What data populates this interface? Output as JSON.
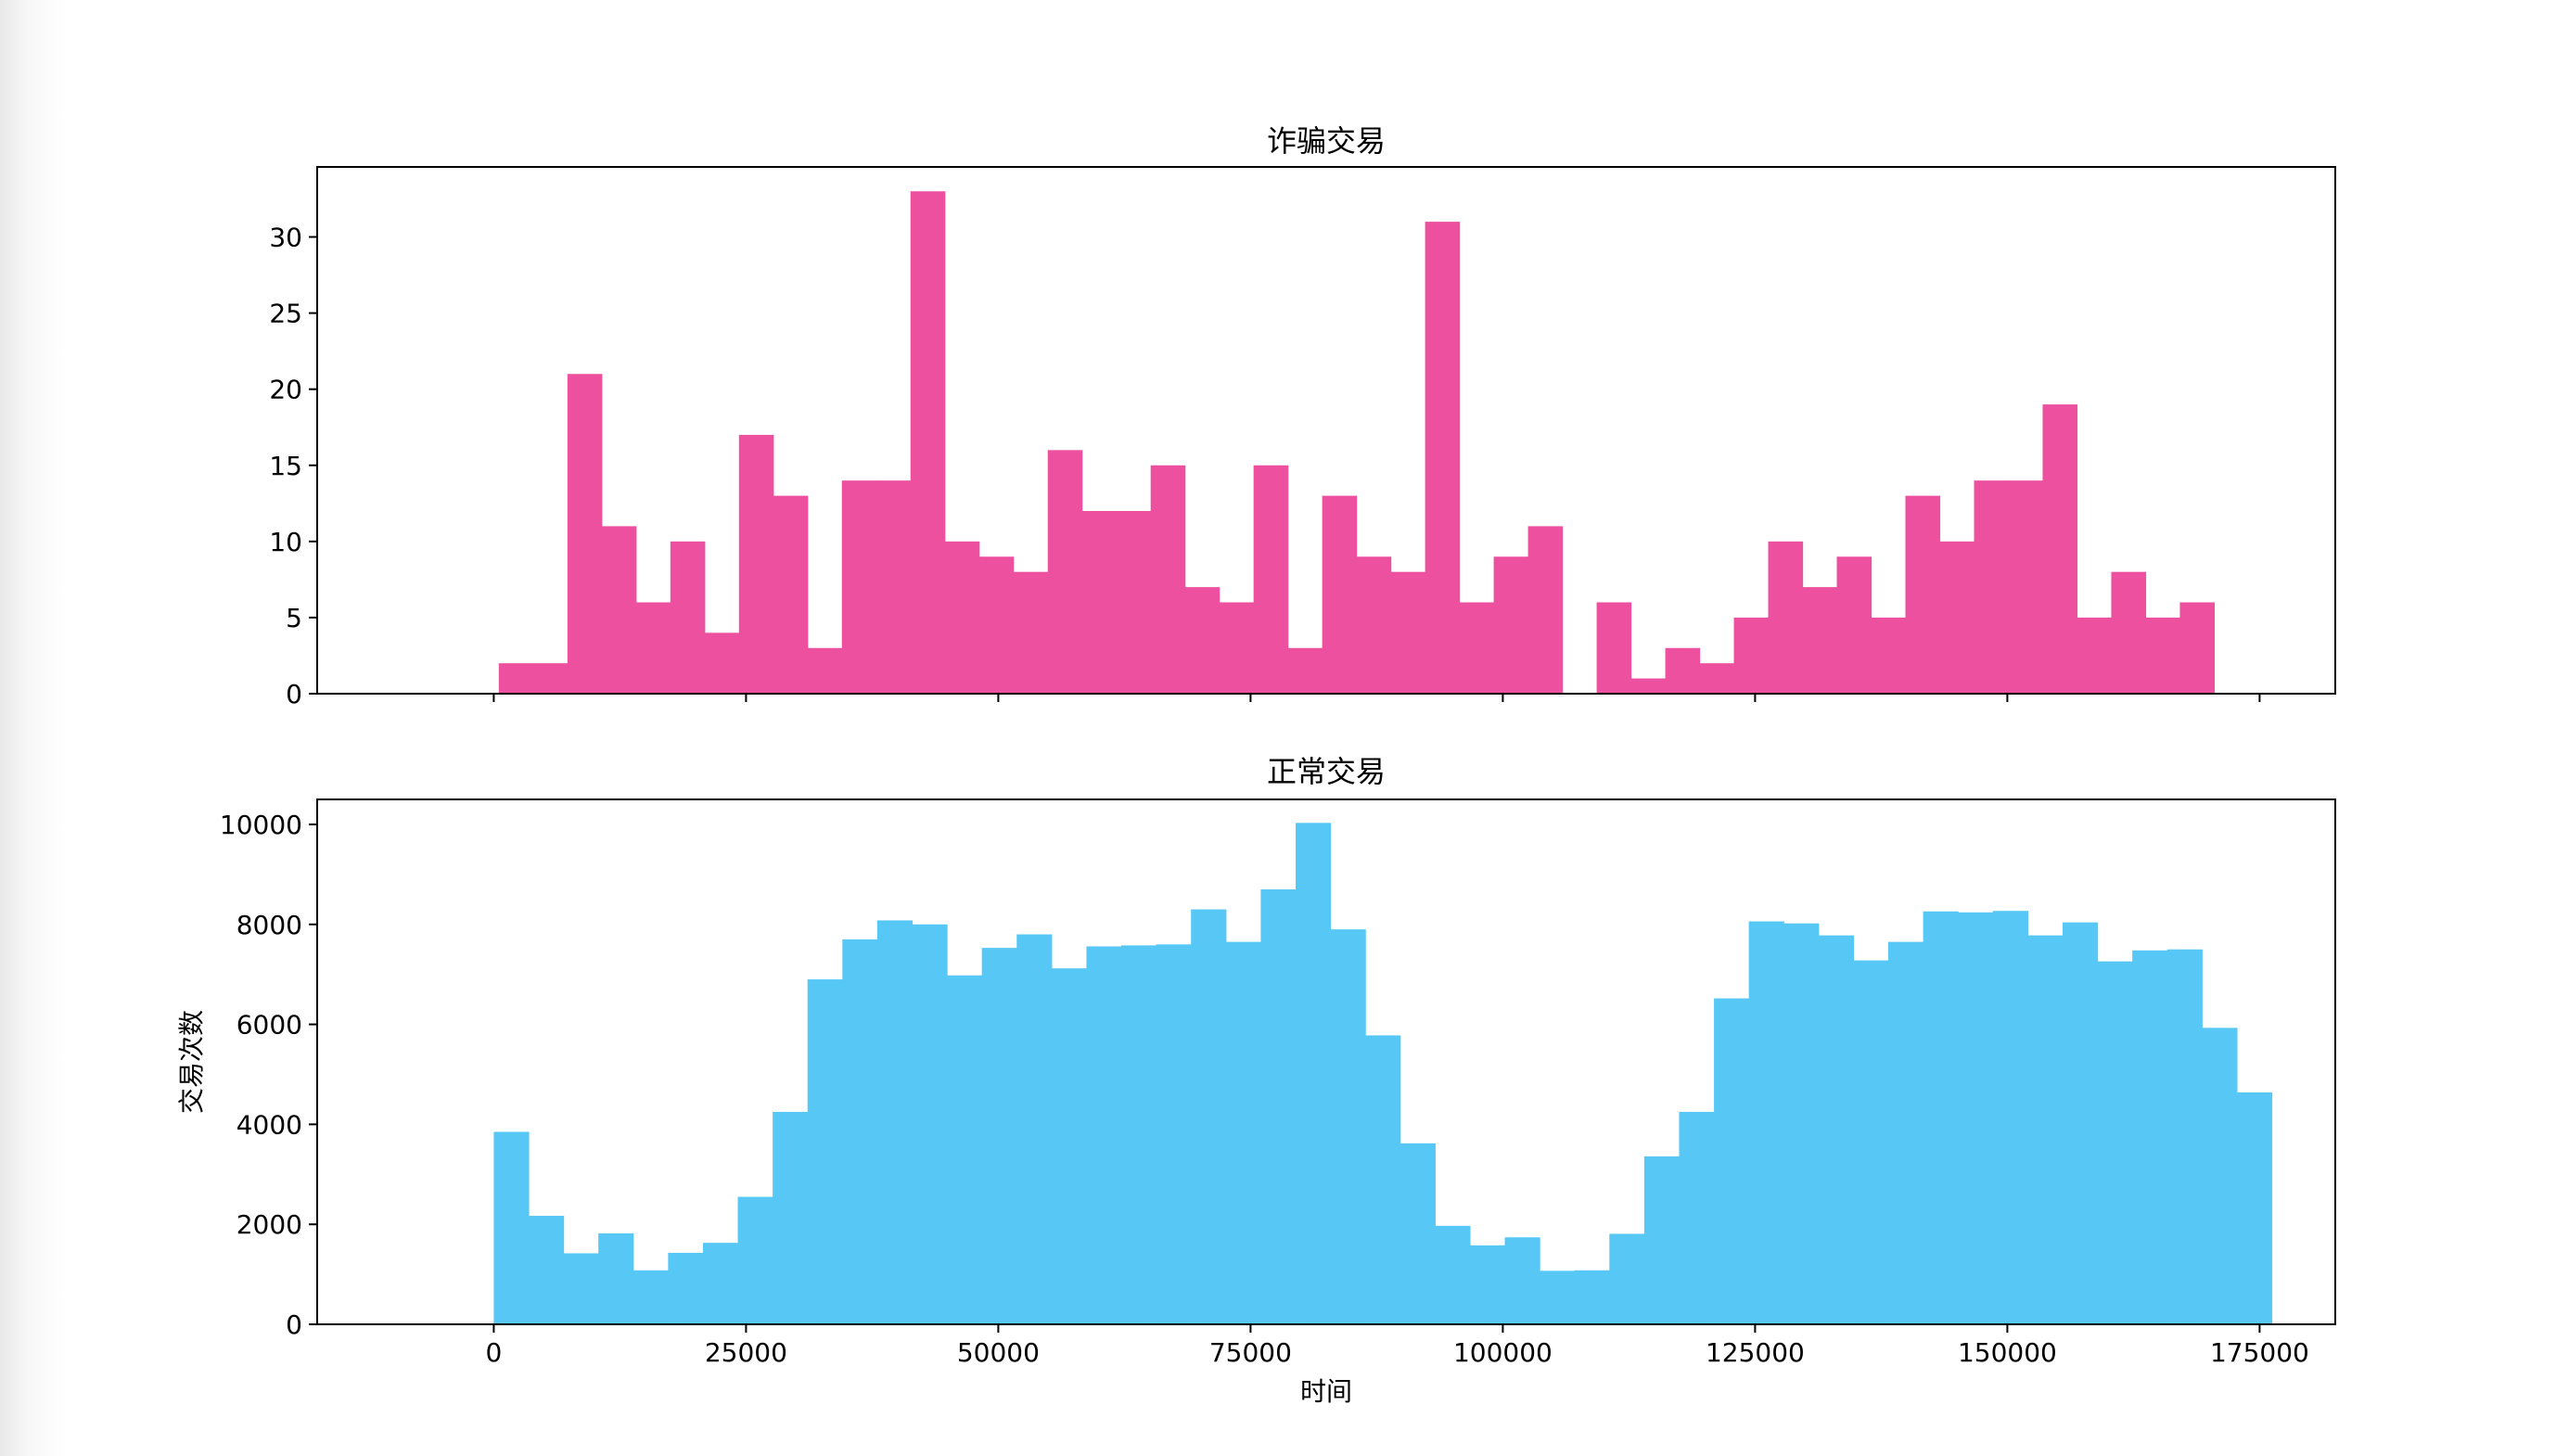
{
  "colors": {
    "fraud": "#EC509F",
    "normal": "#57C8F6",
    "frame": "#000000"
  },
  "chart_data": [
    {
      "type": "bar",
      "title": "诈骗交易",
      "xlabel": "",
      "ylabel": "",
      "bin_width": 3400,
      "x_start": 500,
      "xlim": [
        -17500,
        182500
      ],
      "ylim": [
        0,
        34.6
      ],
      "yticks": [
        "0",
        "5",
        "10",
        "15",
        "20",
        "25",
        "30"
      ],
      "xticks": [
        0,
        25000,
        50000,
        75000,
        100000,
        125000,
        150000,
        175000
      ],
      "xtick_labels_shown": false,
      "values": [
        2,
        2,
        21,
        11,
        6,
        10,
        4,
        17,
        13,
        3,
        14,
        14,
        33,
        10,
        9,
        8,
        16,
        12,
        12,
        15,
        7,
        6,
        15,
        3,
        13,
        9,
        8,
        31,
        6,
        9,
        11,
        0,
        6,
        1,
        3,
        2,
        5,
        10,
        7,
        9,
        5,
        13,
        10,
        14,
        14,
        19,
        5,
        8,
        5,
        6
      ]
    },
    {
      "type": "bar",
      "title": "正常交易",
      "xlabel": "时间",
      "ylabel": "交易次数",
      "bin_width": 3455,
      "x_start": 0,
      "xlim": [
        -17500,
        182500
      ],
      "ylim": [
        0,
        10500
      ],
      "yticks": [
        "0",
        "2000",
        "4000",
        "6000",
        "8000",
        "10000"
      ],
      "xticks": [
        0,
        25000,
        50000,
        75000,
        100000,
        125000,
        150000,
        175000
      ],
      "xtick_labels": [
        "0",
        "25000",
        "50000",
        "75000",
        "100000",
        "125000",
        "150000",
        "175000"
      ],
      "values": [
        3850,
        2170,
        1420,
        1820,
        1080,
        1430,
        1630,
        2550,
        4250,
        6900,
        7700,
        8080,
        8000,
        6980,
        7530,
        7800,
        7120,
        7560,
        7580,
        7600,
        8300,
        7650,
        8700,
        10030,
        7900,
        5780,
        3620,
        1970,
        1580,
        1740,
        1070,
        1080,
        1810,
        3360,
        4250,
        6520,
        8060,
        8020,
        7780,
        7280,
        7650,
        8260,
        8240,
        8270,
        7780,
        8040,
        7260,
        7480,
        7500,
        5930,
        4640
      ]
    }
  ]
}
